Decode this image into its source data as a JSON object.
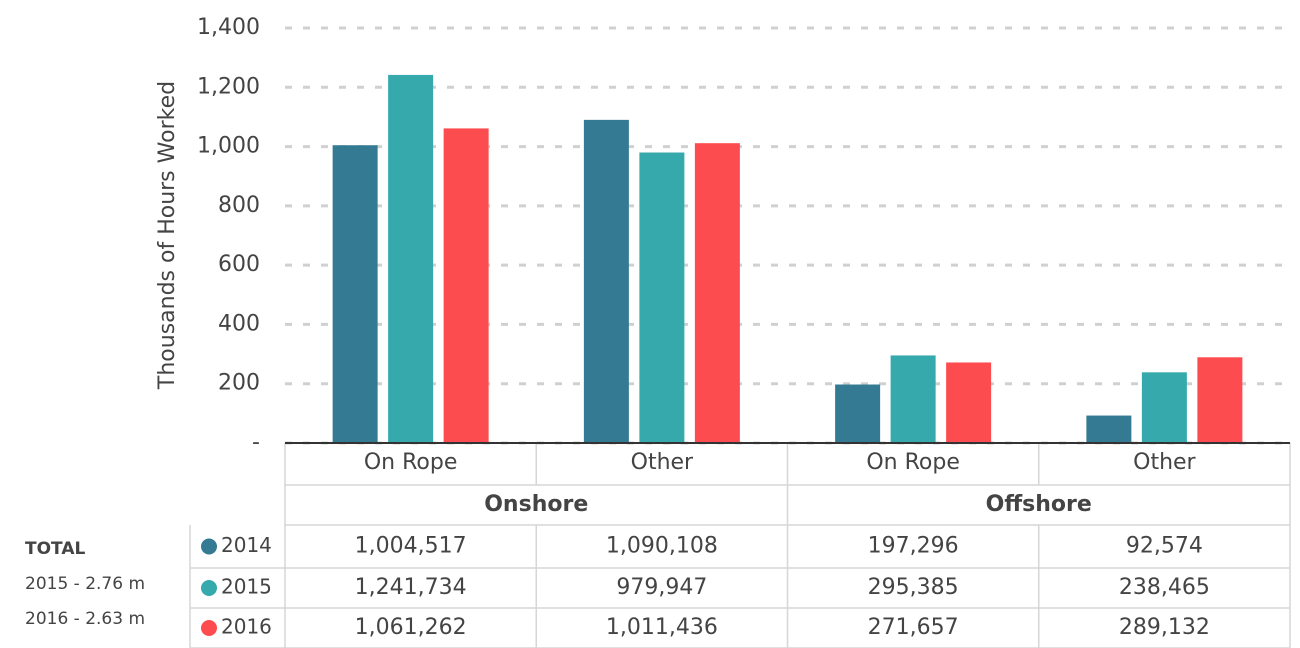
{
  "chart_data": {
    "type": "bar",
    "y_label": "Thousands of Hours Worked",
    "groups": [
      "Onshore",
      "Offshore"
    ],
    "categories": [
      "On Rope",
      "Other",
      "On Rope",
      "Other"
    ],
    "series": [
      {
        "name": "2014",
        "color": "#357a93",
        "values": [
          1004.517,
          1090.108,
          197.296,
          92.574
        ],
        "value_labels": [
          "1,004,517",
          "1,090,108",
          "197,296",
          "92,574"
        ]
      },
      {
        "name": "2015",
        "color": "#36a9ad",
        "values": [
          1241.734,
          979.947,
          295.385,
          238.465
        ],
        "value_labels": [
          "1,241,734",
          "979,947",
          "295,385",
          "238,465"
        ]
      },
      {
        "name": "2016",
        "color": "#fd4c4f",
        "values": [
          1061.262,
          1011.436,
          271.657,
          289.132
        ],
        "value_labels": [
          "1,061,262",
          "1,011,436",
          "271,657",
          "289,132"
        ]
      }
    ],
    "ylim": [
      0,
      1400
    ],
    "yticks": [
      {
        "value": 0,
        "label": "-"
      },
      200,
      400,
      600,
      800,
      {
        "value": 1000,
        "label": "1,000"
      },
      {
        "value": 1200,
        "label": "1,200"
      },
      {
        "value": 1400,
        "label": "1,400"
      }
    ],
    "grid": true,
    "totals": {
      "title": "TOTAL",
      "lines": [
        "2015 - 2.76 m",
        "2016 -  2.63 m"
      ]
    }
  }
}
